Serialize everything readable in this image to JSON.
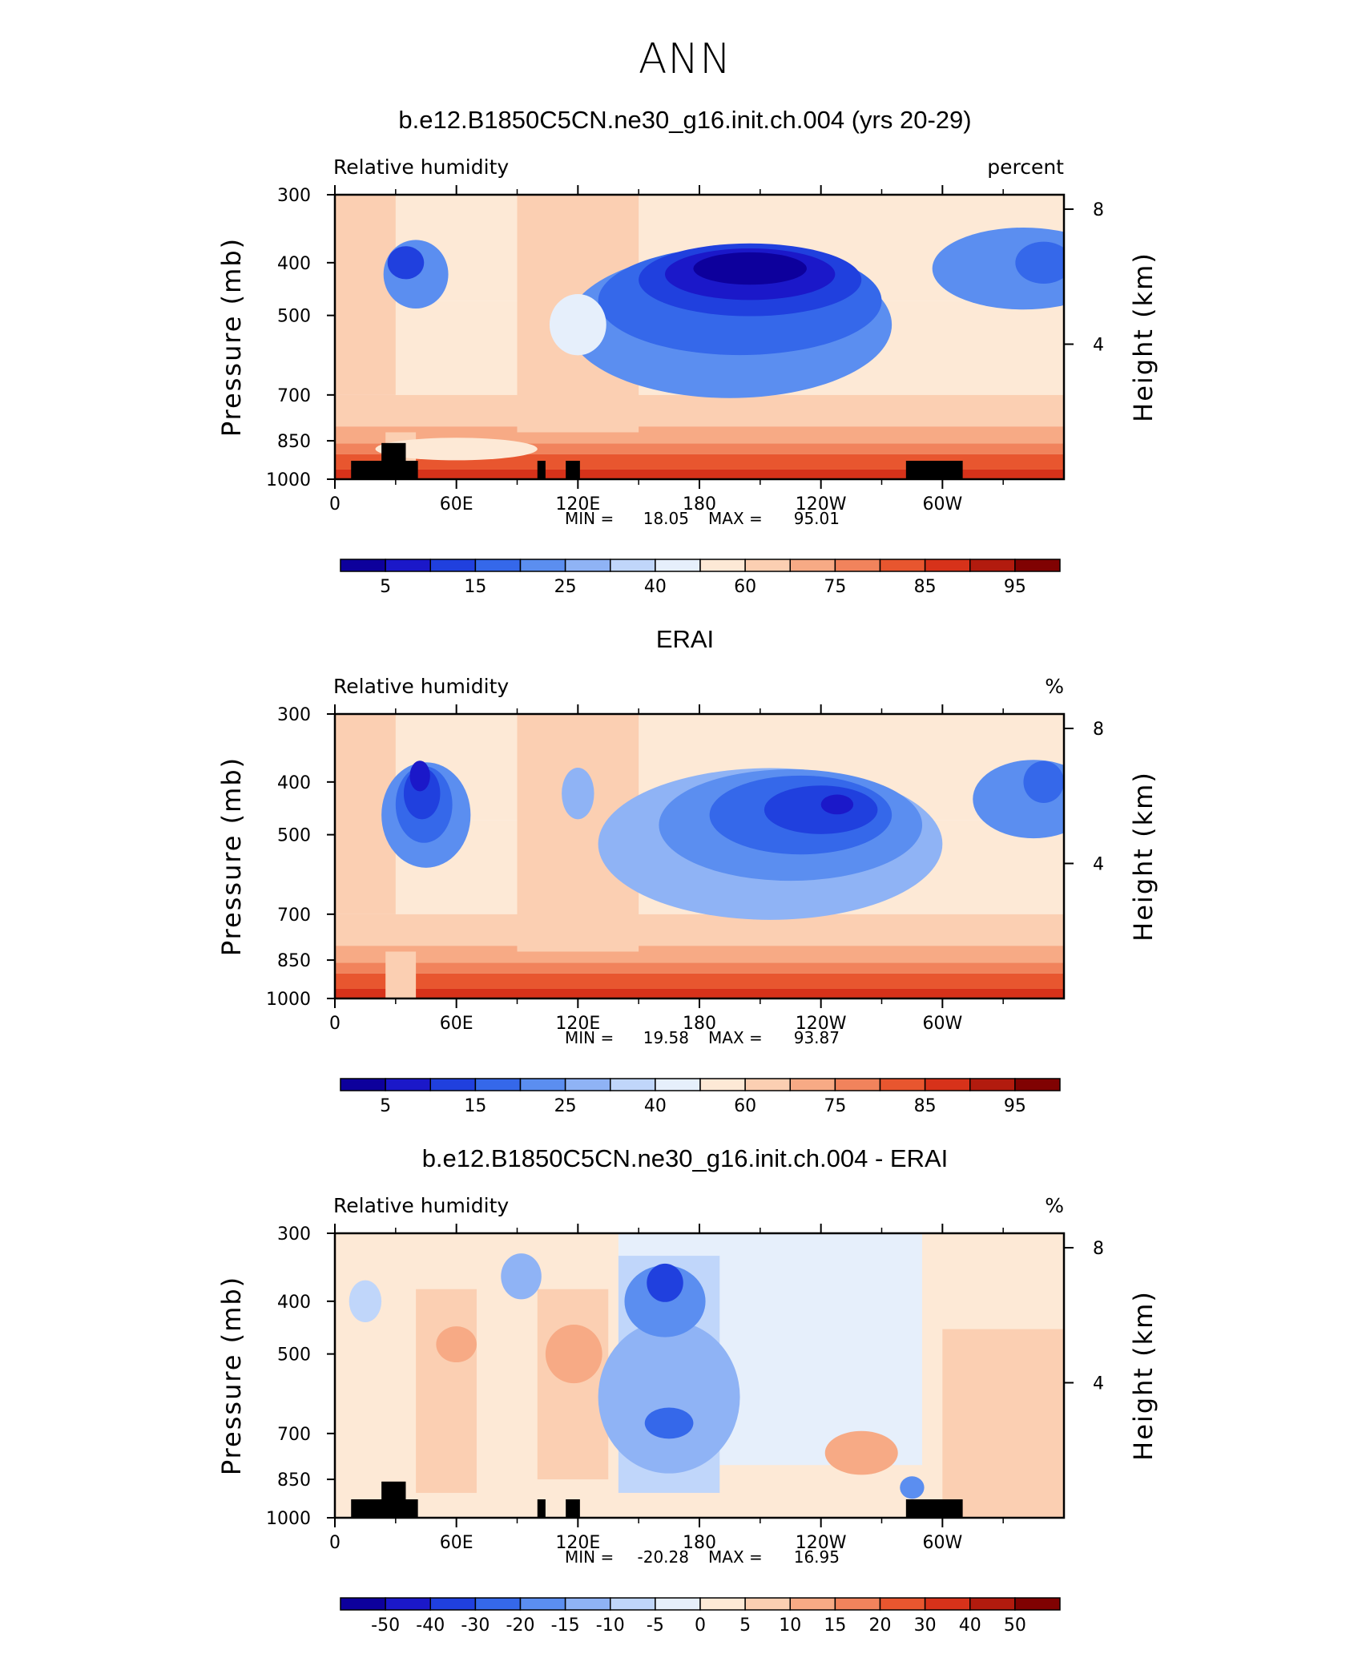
{
  "figure": {
    "title": "ANN"
  },
  "chart_data": [
    {
      "type": "heatmap",
      "title": "b.e12.B1850C5CN.ne30_g16.init.ch.004 (yrs 20-29)",
      "variable": "Relative humidity",
      "units": "percent",
      "ylabel": "Pressure (mb)",
      "ylabel_right": "Height (km)",
      "x_ticks": [
        "0",
        "60E",
        "120E",
        "180",
        "120W",
        "60W"
      ],
      "x_values": [
        0,
        60,
        120,
        180,
        240,
        300
      ],
      "xlim": [
        0,
        360
      ],
      "y_ticks": [
        "300",
        "400",
        "500",
        "700",
        "850",
        "1000"
      ],
      "y_values": [
        300,
        400,
        500,
        700,
        850,
        1000
      ],
      "ylim": [
        1000,
        300
      ],
      "height_ticks": [
        "8",
        "4"
      ],
      "height_values": [
        8,
        4
      ],
      "min_label": "MIN =",
      "min": "18.05",
      "max_label": "MAX =",
      "max": "95.01",
      "colorbar_labels": [
        "5",
        "15",
        "25",
        "40",
        "60",
        "75",
        "85",
        "95"
      ],
      "colorbar_levels": [
        5,
        10,
        15,
        20,
        25,
        30,
        40,
        50,
        60,
        70,
        75,
        80,
        85,
        90,
        95
      ],
      "terrain": true,
      "features": [
        {
          "lon": 35,
          "p": 400,
          "level": 2,
          "rx": 9,
          "rp": 45
        },
        {
          "lon": 40,
          "p": 420,
          "level": 4,
          "rx": 16,
          "rp": 110
        },
        {
          "lon": 205,
          "p": 410,
          "level": 0,
          "rx": 28,
          "rp": 45
        },
        {
          "lon": 205,
          "p": 420,
          "level": 1,
          "rx": 42,
          "rp": 80
        },
        {
          "lon": 205,
          "p": 430,
          "level": 2,
          "rx": 55,
          "rp": 120
        },
        {
          "lon": 200,
          "p": 470,
          "level": 3,
          "rx": 70,
          "rp": 200
        },
        {
          "lon": 195,
          "p": 520,
          "level": 4,
          "rx": 80,
          "rp": 300
        },
        {
          "lon": 350,
          "p": 400,
          "level": 3,
          "rx": 14,
          "rp": 60
        },
        {
          "lon": 340,
          "p": 410,
          "level": 4,
          "rx": 45,
          "rp": 130
        },
        {
          "lon": 120,
          "p": 520,
          "level": 7,
          "rx": 14,
          "rp": 120
        },
        {
          "lon": 60,
          "p": 880,
          "level": 8,
          "rx": 40,
          "rp": 60
        }
      ]
    },
    {
      "type": "heatmap",
      "title": "ERAI",
      "variable": "Relative humidity",
      "units": "%",
      "ylabel": "Pressure (mb)",
      "ylabel_right": "Height (km)",
      "x_ticks": [
        "0",
        "60E",
        "120E",
        "180",
        "120W",
        "60W"
      ],
      "x_values": [
        0,
        60,
        120,
        180,
        240,
        300
      ],
      "xlim": [
        0,
        360
      ],
      "y_ticks": [
        "300",
        "400",
        "500",
        "700",
        "850",
        "1000"
      ],
      "y_values": [
        300,
        400,
        500,
        700,
        850,
        1000
      ],
      "ylim": [
        1000,
        300
      ],
      "height_ticks": [
        "8",
        "4"
      ],
      "height_values": [
        8,
        4
      ],
      "min_label": "MIN =",
      "min": "19.58",
      "max_label": "MAX =",
      "max": "93.87",
      "colorbar_labels": [
        "5",
        "15",
        "25",
        "40",
        "60",
        "75",
        "85",
        "95"
      ],
      "colorbar_levels": [
        5,
        10,
        15,
        20,
        25,
        30,
        40,
        50,
        60,
        70,
        75,
        80,
        85,
        90,
        95
      ],
      "terrain": false,
      "features": [
        {
          "lon": 42,
          "p": 390,
          "level": 1,
          "rx": 5,
          "rp": 40
        },
        {
          "lon": 43,
          "p": 420,
          "level": 2,
          "rx": 9,
          "rp": 80
        },
        {
          "lon": 44,
          "p": 440,
          "level": 3,
          "rx": 14,
          "rp": 130
        },
        {
          "lon": 45,
          "p": 460,
          "level": 4,
          "rx": 22,
          "rp": 190
        },
        {
          "lon": 248,
          "p": 440,
          "level": 1,
          "rx": 8,
          "rp": 25
        },
        {
          "lon": 240,
          "p": 450,
          "level": 2,
          "rx": 28,
          "rp": 80
        },
        {
          "lon": 230,
          "p": 460,
          "level": 3,
          "rx": 45,
          "rp": 140
        },
        {
          "lon": 225,
          "p": 480,
          "level": 4,
          "rx": 65,
          "rp": 210
        },
        {
          "lon": 215,
          "p": 520,
          "level": 5,
          "rx": 85,
          "rp": 310
        },
        {
          "lon": 350,
          "p": 400,
          "level": 3,
          "rx": 10,
          "rp": 60
        },
        {
          "lon": 345,
          "p": 430,
          "level": 4,
          "rx": 30,
          "rp": 130
        },
        {
          "lon": 120,
          "p": 420,
          "level": 5,
          "rx": 8,
          "rp": 80
        }
      ]
    },
    {
      "type": "heatmap",
      "title": "b.e12.B1850C5CN.ne30_g16.init.ch.004 - ERAI",
      "variable": "Relative humidity",
      "units": "%",
      "ylabel": "Pressure (mb)",
      "ylabel_right": "Height (km)",
      "x_ticks": [
        "0",
        "60E",
        "120E",
        "180",
        "120W",
        "60W"
      ],
      "x_values": [
        0,
        60,
        120,
        180,
        240,
        300
      ],
      "xlim": [
        0,
        360
      ],
      "y_ticks": [
        "300",
        "400",
        "500",
        "700",
        "850",
        "1000"
      ],
      "y_values": [
        300,
        400,
        500,
        700,
        850,
        1000
      ],
      "ylim": [
        1000,
        300
      ],
      "height_ticks": [
        "8",
        "4"
      ],
      "height_values": [
        8,
        4
      ],
      "min_label": "MIN =",
      "min": "-20.28",
      "max_label": "MAX =",
      "max": "16.95",
      "colorbar_labels": [
        "-50",
        "-40",
        "-30",
        "-20",
        "-15",
        "-10",
        "-5",
        "0",
        "5",
        "10",
        "15",
        "20",
        "30",
        "40",
        "50"
      ],
      "colorbar_levels": [
        -50,
        -40,
        -30,
        -20,
        -15,
        -10,
        -5,
        0,
        5,
        10,
        15,
        20,
        30,
        40,
        50
      ],
      "terrain": true,
      "features": [
        {
          "lon": 163,
          "p": 370,
          "level": 2,
          "rx": 9,
          "rp": 50
        },
        {
          "lon": 163,
          "p": 400,
          "level": 4,
          "rx": 20,
          "rp": 110
        },
        {
          "lon": 165,
          "p": 670,
          "level": 3,
          "rx": 12,
          "rp": 70
        },
        {
          "lon": 165,
          "p": 600,
          "level": 5,
          "rx": 35,
          "rp": 360
        },
        {
          "lon": 92,
          "p": 360,
          "level": 5,
          "rx": 10,
          "rp": 60
        },
        {
          "lon": 15,
          "p": 400,
          "level": 6,
          "rx": 8,
          "rp": 60
        },
        {
          "lon": 118,
          "p": 500,
          "level": 10,
          "rx": 14,
          "rp": 110
        },
        {
          "lon": 60,
          "p": 480,
          "level": 10,
          "rx": 10,
          "rp": 60
        },
        {
          "lon": 260,
          "p": 760,
          "level": 10,
          "rx": 18,
          "rp": 120
        },
        {
          "lon": 285,
          "p": 880,
          "level": 4,
          "rx": 6,
          "rp": 60
        }
      ]
    }
  ],
  "colors": {
    "ramp": [
      "#0d009c",
      "#1b18c9",
      "#2040de",
      "#3568ea",
      "#5b8ef0",
      "#8fb3f5",
      "#c0d6fa",
      "#e6effb",
      "#fde9d6",
      "#fbcfb2",
      "#f7aa85",
      "#f1835c",
      "#e8562f",
      "#d7321a",
      "#b21b0e",
      "#800202"
    ]
  }
}
